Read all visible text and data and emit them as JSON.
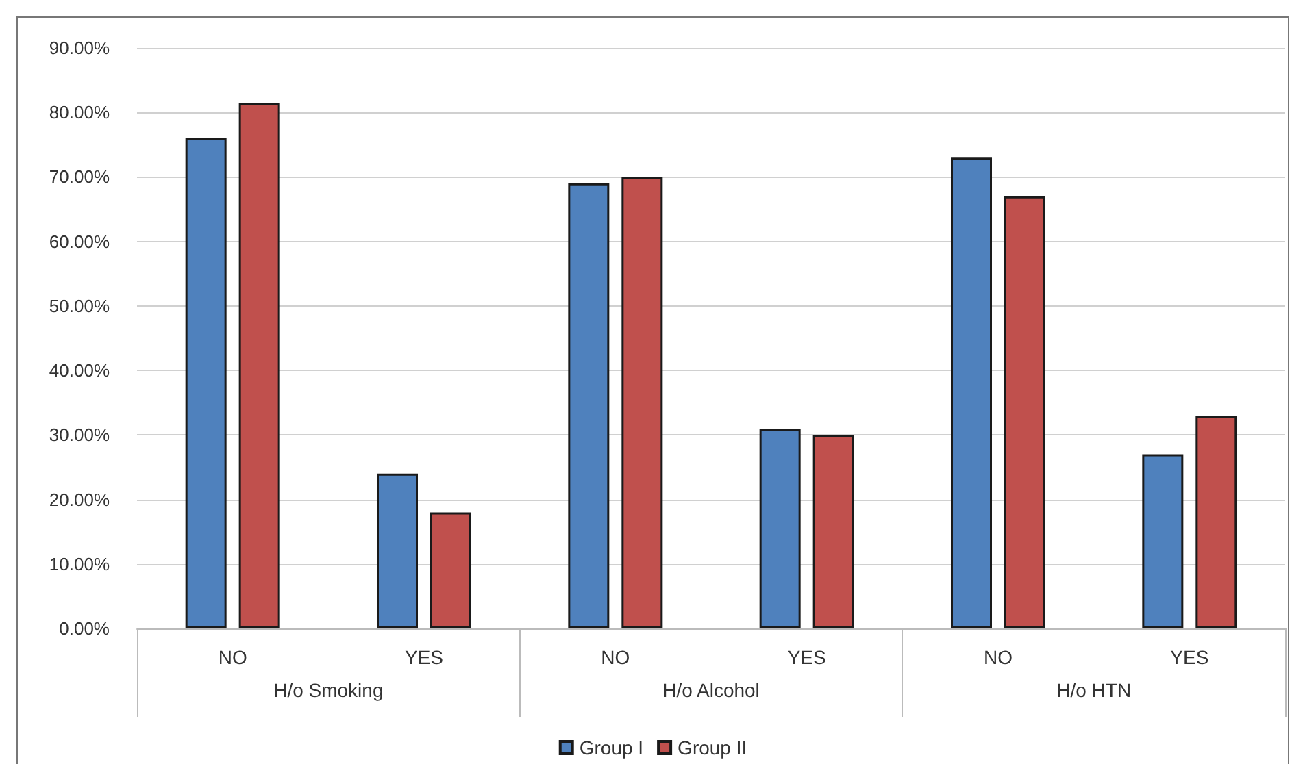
{
  "chart_data": {
    "type": "bar",
    "categories": [
      "NO",
      "YES",
      "NO",
      "YES",
      "NO",
      "YES"
    ],
    "annotations": [
      "H/o Smoking",
      "H/o Alcohol",
      "H/o HTN"
    ],
    "series": [
      {
        "name": "Group I",
        "color": "#4f81bd",
        "values": [
          76,
          24,
          69,
          31,
          73,
          27
        ]
      },
      {
        "name": "Group II",
        "color": "#c0504d",
        "values": [
          81.5,
          18,
          70,
          30,
          67,
          33
        ]
      }
    ],
    "ylim": [
      0,
      90
    ],
    "yticks": [
      {
        "value": 0,
        "label": "0.00%"
      },
      {
        "value": 10,
        "label": "10.00%"
      },
      {
        "value": 20,
        "label": "20.00%"
      },
      {
        "value": 30,
        "label": "30.00%"
      },
      {
        "value": 40,
        "label": "40.00%"
      },
      {
        "value": 50,
        "label": "50.00%"
      },
      {
        "value": 60,
        "label": "60.00%"
      },
      {
        "value": 70,
        "label": "70.00%"
      },
      {
        "value": 80,
        "label": "80.00%"
      },
      {
        "value": 90,
        "label": "90.00%"
      }
    ],
    "grid": "y",
    "legend": "bottom"
  }
}
